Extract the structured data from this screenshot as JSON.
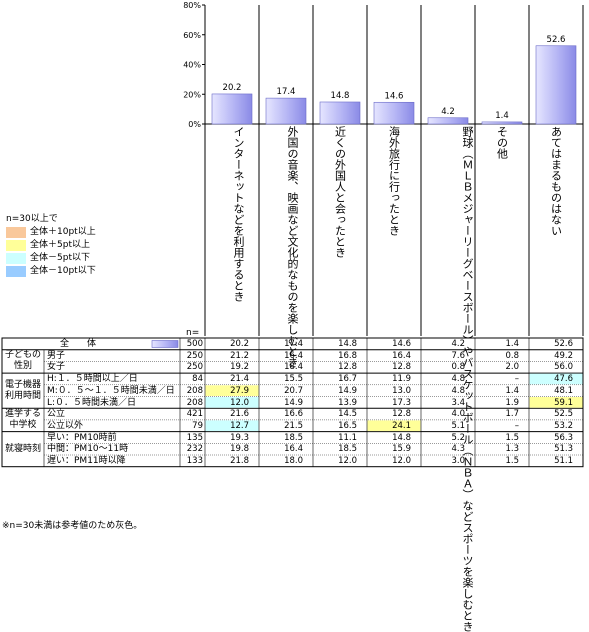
{
  "chart_data": {
    "type": "bar",
    "n_header": "n=",
    "ylim": [
      0,
      80
    ],
    "yticks": [
      "0%",
      "20%",
      "40%",
      "60%",
      "80%"
    ],
    "categories": [
      "インターネットなどを利用するとき",
      "外国の音楽、映画など文化的なものを楽しむとき",
      "近くの外国人と会ったとき",
      "海外旅行に行ったとき",
      "野球（ＭＬＢメジャーリーグベースボール）やバスケットボール（ＮＢＡ）などスポーツを楽しむとき",
      "その他",
      "あてはまるものはない"
    ],
    "values": [
      20.2,
      17.4,
      14.8,
      14.6,
      4.2,
      1.4,
      52.6
    ],
    "value_labels": [
      "20.2",
      "17.4",
      "14.8",
      "14.6",
      "4.2",
      "1.4",
      "52.6"
    ],
    "legend": {
      "title": "n=30以上で",
      "items": [
        {
          "label": "全体＋10pt以上",
          "color": "#f9c89b"
        },
        {
          "label": "全体＋5pt以上",
          "color": "#ffff99"
        },
        {
          "label": "全体－5pt以下",
          "color": "#ccffff"
        },
        {
          "label": "全体－10pt以下",
          "color": "#99ccff"
        }
      ]
    },
    "highlight_colors": {
      "p10": "#f9c89b",
      "p5": "#ffff99",
      "m5": "#ccffff",
      "m10": "#99ccff"
    },
    "table": {
      "total": {
        "label": "全　　体",
        "n": "500",
        "values": [
          "20.2",
          "17.4",
          "14.8",
          "14.6",
          "4.2",
          "1.4",
          "52.6"
        ]
      },
      "groups": [
        {
          "label": "子どもの性別",
          "rows": [
            {
              "label": "男子",
              "n": "250",
              "values": [
                "21.2",
                "16.4",
                "16.8",
                "16.4",
                "7.6",
                "0.8",
                "49.2"
              ],
              "hl": [
                "",
                "",
                "",
                "",
                "",
                "",
                ""
              ]
            },
            {
              "label": "女子",
              "n": "250",
              "values": [
                "19.2",
                "18.4",
                "12.8",
                "12.8",
                "0.8",
                "2.0",
                "56.0"
              ],
              "hl": [
                "",
                "",
                "",
                "",
                "",
                "",
                ""
              ]
            }
          ]
        },
        {
          "label": "電子機器利用時間",
          "rows": [
            {
              "label": "H:１．５時間以上／日",
              "n": "84",
              "values": [
                "21.4",
                "15.5",
                "16.7",
                "11.9",
                "4.8",
                "–",
                "47.6"
              ],
              "hl": [
                "",
                "",
                "",
                "",
                "",
                "",
                "m5"
              ]
            },
            {
              "label": "M:０．５～１．５時間未満／日",
              "n": "208",
              "values": [
                "27.9",
                "20.7",
                "14.9",
                "13.0",
                "4.8",
                "1.4",
                "48.1"
              ],
              "hl": [
                "p5",
                "",
                "",
                "",
                "",
                "",
                ""
              ]
            },
            {
              "label": "L:０．５時間未満／日",
              "n": "208",
              "values": [
                "12.0",
                "14.9",
                "13.9",
                "17.3",
                "3.4",
                "1.9",
                "59.1"
              ],
              "hl": [
                "m5",
                "",
                "",
                "",
                "",
                "",
                "p5"
              ]
            }
          ]
        },
        {
          "label": "進学する中学校",
          "rows": [
            {
              "label": "公立",
              "n": "421",
              "values": [
                "21.6",
                "16.6",
                "14.5",
                "12.8",
                "4.0",
                "1.7",
                "52.5"
              ],
              "hl": [
                "",
                "",
                "",
                "",
                "",
                "",
                ""
              ]
            },
            {
              "label": "公立以外",
              "n": "79",
              "values": [
                "12.7",
                "21.5",
                "16.5",
                "24.1",
                "5.1",
                "–",
                "53.2"
              ],
              "hl": [
                "m5",
                "",
                "",
                "p5",
                "",
                "",
                ""
              ]
            }
          ]
        },
        {
          "label": "就寝時刻",
          "rows": [
            {
              "label": "早い：PM10時前",
              "n": "135",
              "values": [
                "19.3",
                "18.5",
                "11.1",
                "14.8",
                "5.2",
                "1.5",
                "56.3"
              ],
              "hl": [
                "",
                "",
                "",
                "",
                "",
                "",
                ""
              ]
            },
            {
              "label": "中間：PM10～11時",
              "n": "232",
              "values": [
                "19.8",
                "16.4",
                "18.5",
                "15.9",
                "4.3",
                "1.3",
                "51.3"
              ],
              "hl": [
                "",
                "",
                "",
                "",
                "",
                "",
                ""
              ]
            },
            {
              "label": "遅い：PM11時以降",
              "n": "133",
              "values": [
                "21.8",
                "18.0",
                "12.0",
                "12.0",
                "3.0",
                "1.5",
                "51.1"
              ],
              "hl": [
                "",
                "",
                "",
                "",
                "",
                "",
                ""
              ]
            }
          ]
        }
      ]
    },
    "footnote": "※n=30未満は参考値のため灰色。"
  }
}
